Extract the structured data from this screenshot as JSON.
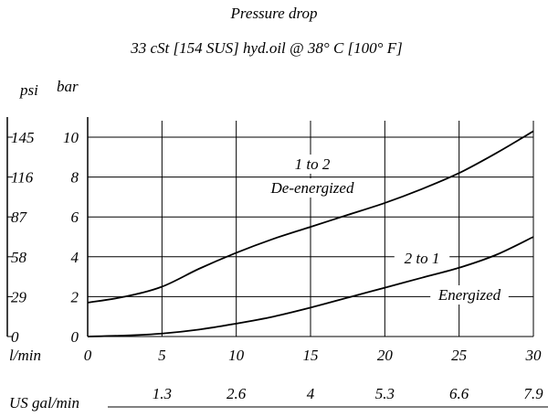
{
  "chart_data": {
    "type": "line",
    "title": "Pressure   drop",
    "subtitle": "33 cSt [154 SUS] hyd.oil @ 38° C [100° F]",
    "y_units": [
      "psi",
      "bar"
    ],
    "x_units": {
      "primary": "l/min",
      "secondary": "US gal/min"
    },
    "xlim": [
      0,
      30
    ],
    "ylim": [
      0,
      10
    ],
    "x_ticks": [
      0,
      5,
      10,
      15,
      20,
      25,
      30
    ],
    "x_tick_labels": [
      "0",
      "5",
      "10",
      "15",
      "20",
      "25",
      "30"
    ],
    "x2_tick_positions": [
      5,
      10,
      15,
      20,
      25,
      30
    ],
    "x2_tick_labels": [
      "1.3",
      "2.6",
      "4",
      "5.3",
      "6.6",
      "7.9"
    ],
    "y_ticks": [
      0,
      2,
      4,
      6,
      8,
      10
    ],
    "y_tick_labels_bar": [
      "0",
      "2",
      "4",
      "6",
      "8",
      "10"
    ],
    "y_tick_labels_psi": [
      "0",
      "29",
      "58",
      "87",
      "116",
      "145"
    ],
    "grid": true,
    "series": [
      {
        "name": "1 to 2 De-energized",
        "label_lines": [
          "1 to 2",
          "De-energized"
        ],
        "x": [
          0,
          2.5,
          5,
          7.5,
          10,
          12.5,
          15,
          17.5,
          20,
          22.5,
          25,
          27.5,
          30
        ],
        "y": [
          1.7,
          2.0,
          2.5,
          3.4,
          4.2,
          4.9,
          5.5,
          6.1,
          6.7,
          7.4,
          8.2,
          9.2,
          10.3
        ]
      },
      {
        "name": "2 to 1 Energized",
        "label_lines": [
          "2 to 1",
          "Energized"
        ],
        "x": [
          0,
          2.5,
          5,
          7.5,
          10,
          12.5,
          15,
          17.5,
          20,
          22.5,
          25,
          27.5,
          30
        ],
        "y": [
          0,
          0.05,
          0.15,
          0.35,
          0.65,
          1.0,
          1.45,
          1.95,
          2.45,
          2.95,
          3.45,
          4.1,
          5.0
        ]
      }
    ]
  }
}
